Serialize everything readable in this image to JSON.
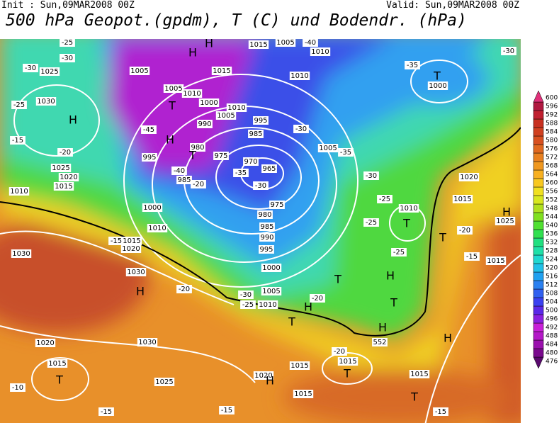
{
  "header": {
    "init": "Init : Sun,09MAR2008 00Z",
    "valid": "Valid: Sun,09MAR2008 00Z",
    "title": "500 hPa Geopot.(gpdm), T (C) und Bodendr. (hPa)"
  },
  "colorbar": {
    "levels": [
      476,
      480,
      484,
      488,
      492,
      496,
      500,
      504,
      508,
      512,
      516,
      520,
      524,
      528,
      532,
      536,
      540,
      544,
      548,
      552,
      556,
      560,
      564,
      568,
      572,
      576,
      580,
      584,
      588,
      592,
      596,
      600
    ],
    "colors": [
      "#5a0a6e",
      "#7a0a8e",
      "#9a10ae",
      "#b418c8",
      "#c820d8",
      "#8a20e0",
      "#5a28e8",
      "#3a40f0",
      "#3060f0",
      "#2a80f0",
      "#20a0f0",
      "#20c0e8",
      "#20d8d0",
      "#20e0a8",
      "#20e080",
      "#30e050",
      "#50e030",
      "#80e020",
      "#b0e020",
      "#d8e820",
      "#f0e020",
      "#f8c820",
      "#f8b020",
      "#f09820",
      "#e88020",
      "#e06820",
      "#d85020",
      "#d04020",
      "#c83020",
      "#c02030",
      "#b01840",
      "#e0307a"
    ]
  },
  "map_labels": [
    "-25",
    "-30",
    "1025",
    "-30",
    "1005",
    "H",
    "H",
    "1015",
    "1005",
    "-40",
    "1010",
    "1015",
    "1010",
    "-35",
    "T",
    "1000",
    "-30",
    "-25",
    "1030",
    "H",
    "-45",
    "1005",
    "T",
    "1010",
    "H",
    "990",
    "1000",
    "1005",
    "1010",
    "995",
    "985",
    "980",
    "T",
    "975",
    "970",
    "965",
    "-40",
    "985",
    "-35",
    "-30",
    "995",
    "-15",
    "-20",
    "1025",
    "1020",
    "1015",
    "1010",
    "-30",
    "1005",
    "-35",
    "-30",
    "-25",
    "1010",
    "T",
    "-25",
    "-25",
    "1020",
    "1015",
    "H",
    "T",
    "-20",
    "1025",
    "1015",
    "-15",
    "1000",
    "1010",
    "-15",
    "1015",
    "1020",
    "975",
    "980",
    "985",
    "990",
    "995",
    "1000",
    "1005",
    "H",
    "T",
    "H",
    "552",
    "H",
    "T",
    "1030",
    "1030",
    "H",
    "-20",
    "-30",
    "1010",
    "H",
    "T",
    "-20",
    "1020",
    "1030",
    "1015",
    "T",
    "-10",
    "1025",
    "-20",
    "1015",
    "T",
    "1015",
    "1020",
    "H",
    "1015",
    "1015",
    "T",
    "-15",
    "-15",
    "-15",
    "-25",
    "-20"
  ]
}
